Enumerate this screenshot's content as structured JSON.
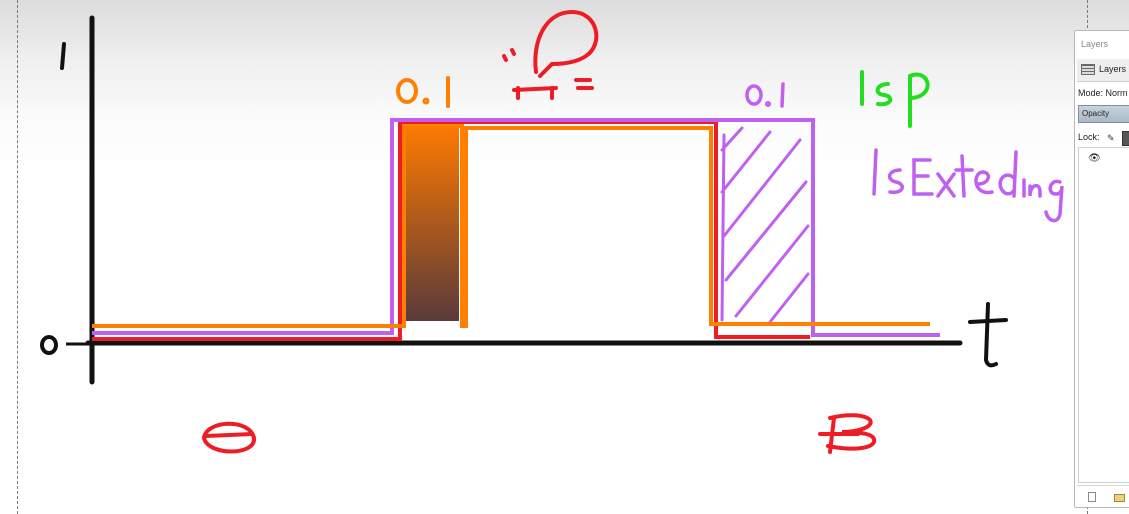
{
  "canvas": {
    "y_axis_top_label": "1",
    "y_axis_zero_label": "0",
    "x_axis_label": "t",
    "left_pulse_width_label": "0.1",
    "right_pulse_width_label": "0.1",
    "legend_isp": "IsP",
    "legend_isextending": "IsExteding",
    "colors": {
      "axis": "#111111",
      "isp_red": "#ee1c24",
      "orange": "#ff7f00",
      "purple": "#c060f0",
      "legend_green": "#22dd22",
      "gradient_top": "#ff7a00",
      "gradient_bottom": "#5a3a3a"
    }
  },
  "layers_panel": {
    "title": "Layers",
    "tab_label": "Layers",
    "mode_label": "Mode:",
    "mode_value": "Norm",
    "opacity_label": "Opacity",
    "lock_label": "Lock:",
    "icons": {
      "tab": "layers-stack-icon",
      "eye": "eye-icon",
      "lock_brush": "paintbrush-icon",
      "new_layer": "new-layer-icon",
      "folder": "folder-icon"
    }
  }
}
